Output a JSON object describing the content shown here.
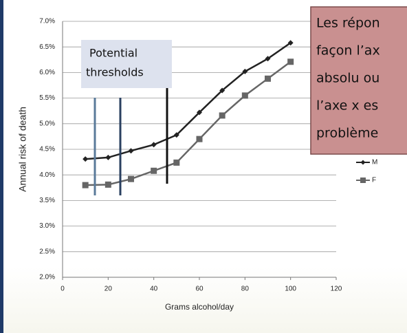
{
  "chart_data": {
    "type": "line",
    "x_label": "Grams alcohol/day",
    "y_label": "Annual risk of death",
    "x": [
      10,
      20,
      30,
      40,
      50,
      60,
      70,
      80,
      90,
      100
    ],
    "series": [
      {
        "name": "M",
        "color": "#222222",
        "marker": "diamond",
        "values": [
          4.31,
          4.34,
          4.47,
          4.59,
          4.78,
          5.22,
          5.65,
          6.02,
          6.27,
          6.58
        ]
      },
      {
        "name": "F",
        "color": "#666666",
        "marker": "square",
        "values": [
          3.8,
          3.81,
          3.92,
          4.08,
          4.24,
          4.7,
          5.16,
          5.55,
          5.88,
          6.21
        ]
      }
    ],
    "xlim": [
      0,
      120
    ],
    "xticks": [
      0,
      20,
      40,
      60,
      80,
      100,
      120
    ],
    "ylim": [
      2.0,
      7.0
    ],
    "yticks": [
      {
        "value": 2.0,
        "label": "2.0%"
      },
      {
        "value": 2.5,
        "label": "2.5%"
      },
      {
        "value": 3.0,
        "label": "3.0%"
      },
      {
        "value": 3.5,
        "label": "3.5%"
      },
      {
        "value": 4.0,
        "label": "4.0%"
      },
      {
        "value": 4.5,
        "label": "4.5%"
      },
      {
        "value": 5.0,
        "label": "5.0%"
      },
      {
        "value": 5.5,
        "label": "5.5%"
      },
      {
        "value": 6.0,
        "label": "6.0%"
      },
      {
        "value": 6.5,
        "label": "6.5%"
      },
      {
        "value": 7.0,
        "label": "7.0%"
      }
    ],
    "grid": true,
    "annotation": [
      "Potential",
      "thresholds"
    ],
    "overlay_text": [
      "Les répon",
      "façon l’ax",
      "absolu ou",
      "l’axe x es",
      "problème"
    ]
  }
}
